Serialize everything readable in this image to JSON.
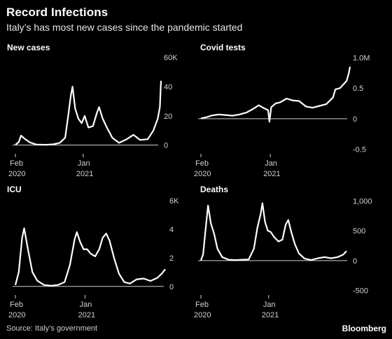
{
  "title": "Record Infections",
  "subtitle": "Italy’s has most new cases since the pandemic started",
  "source": "Source: Italy’s government",
  "brand": "Bloomberg",
  "chart_data": [
    {
      "id": "new-cases",
      "type": "line",
      "title": "New cases",
      "y_ticks": [
        "60K",
        "40",
        "20",
        "0"
      ],
      "y_tick_values": [
        60000,
        40000,
        20000,
        0
      ],
      "ylim": [
        -5000,
        62000
      ],
      "x_ticks": [
        {
          "top": "Feb",
          "bottom": "2020",
          "date": "2020-02-24"
        },
        {
          "top": "Jan",
          "bottom": "2021",
          "date": "2021-01-01"
        }
      ],
      "series": [
        {
          "points": [
            [
              "2020-02-24",
              200
            ],
            [
              "2020-03-10",
              2000
            ],
            [
              "2020-03-21",
              6500
            ],
            [
              "2020-04-05",
              4500
            ],
            [
              "2020-05-01",
              1800
            ],
            [
              "2020-06-01",
              300
            ],
            [
              "2020-07-15",
              200
            ],
            [
              "2020-08-15",
              500
            ],
            [
              "2020-09-15",
              1500
            ],
            [
              "2020-10-10",
              5000
            ],
            [
              "2020-10-25",
              21000
            ],
            [
              "2020-11-05",
              34000
            ],
            [
              "2020-11-13",
              40000
            ],
            [
              "2020-11-25",
              25000
            ],
            [
              "2020-12-10",
              18000
            ],
            [
              "2020-12-25",
              15000
            ],
            [
              "2021-01-08",
              20000
            ],
            [
              "2021-01-25",
              12000
            ],
            [
              "2021-02-15",
              13000
            ],
            [
              "2021-03-05",
              22000
            ],
            [
              "2021-03-15",
              26000
            ],
            [
              "2021-04-01",
              18000
            ],
            [
              "2021-04-20",
              12000
            ],
            [
              "2021-05-15",
              5000
            ],
            [
              "2021-06-15",
              1500
            ],
            [
              "2021-07-20",
              4000
            ],
            [
              "2021-08-20",
              7000
            ],
            [
              "2021-09-20",
              3500
            ],
            [
              "2021-10-25",
              4000
            ],
            [
              "2021-11-20",
              10000
            ],
            [
              "2021-12-10",
              18000
            ],
            [
              "2021-12-20",
              26000
            ],
            [
              "2021-12-25",
              44000
            ]
          ]
        }
      ]
    },
    {
      "id": "covid-tests",
      "type": "line",
      "title": "Covid tests",
      "y_ticks": [
        "1.0M",
        "0.5",
        "0",
        "-0.5"
      ],
      "y_tick_values": [
        1000000,
        500000,
        0,
        -500000
      ],
      "ylim": [
        -550000,
        1050000
      ],
      "x_ticks": [
        {
          "top": "Feb",
          "bottom": "2020",
          "date": "2020-02-24"
        },
        {
          "top": "Jan",
          "bottom": "2021",
          "date": "2021-01-01"
        }
      ],
      "series": [
        {
          "points": [
            [
              "2020-02-24",
              5000
            ],
            [
              "2020-03-20",
              25000
            ],
            [
              "2020-04-15",
              55000
            ],
            [
              "2020-05-15",
              70000
            ],
            [
              "2020-06-15",
              60000
            ],
            [
              "2020-07-15",
              50000
            ],
            [
              "2020-08-15",
              70000
            ],
            [
              "2020-09-15",
              100000
            ],
            [
              "2020-10-15",
              160000
            ],
            [
              "2020-11-10",
              220000
            ],
            [
              "2020-11-25",
              190000
            ],
            [
              "2020-12-10",
              160000
            ],
            [
              "2020-12-22",
              140000
            ],
            [
              "2020-12-28",
              -50000
            ],
            [
              "2021-01-05",
              190000
            ],
            [
              "2021-01-25",
              250000
            ],
            [
              "2021-02-15",
              270000
            ],
            [
              "2021-03-15",
              330000
            ],
            [
              "2021-04-10",
              300000
            ],
            [
              "2021-05-10",
              290000
            ],
            [
              "2021-06-10",
              200000
            ],
            [
              "2021-07-10",
              180000
            ],
            [
              "2021-08-10",
              210000
            ],
            [
              "2021-09-10",
              240000
            ],
            [
              "2021-10-10",
              350000
            ],
            [
              "2021-10-20",
              480000
            ],
            [
              "2021-11-10",
              500000
            ],
            [
              "2021-11-25",
              560000
            ],
            [
              "2021-12-10",
              620000
            ],
            [
              "2021-12-20",
              750000
            ],
            [
              "2021-12-25",
              850000
            ]
          ]
        }
      ]
    },
    {
      "id": "icu",
      "type": "line",
      "title": "ICU",
      "y_ticks": [
        "6K",
        "4",
        "2",
        "0"
      ],
      "y_tick_values": [
        6000,
        4000,
        2000,
        0
      ],
      "ylim": [
        -500,
        6200
      ],
      "x_ticks": [
        {
          "top": "Feb",
          "bottom": "2020",
          "date": "2020-02-24"
        },
        {
          "top": "Jan",
          "bottom": "2021",
          "date": "2021-01-01"
        }
      ],
      "series": [
        {
          "points": [
            [
              "2020-02-24",
              100
            ],
            [
              "2020-03-10",
              1000
            ],
            [
              "2020-03-25",
              3400
            ],
            [
              "2020-04-03",
              4068
            ],
            [
              "2020-04-20",
              2600
            ],
            [
              "2020-05-10",
              1000
            ],
            [
              "2020-06-01",
              400
            ],
            [
              "2020-07-01",
              100
            ],
            [
              "2020-08-01",
              50
            ],
            [
              "2020-09-01",
              100
            ],
            [
              "2020-10-01",
              300
            ],
            [
              "2020-10-25",
              1500
            ],
            [
              "2020-11-15",
              3300
            ],
            [
              "2020-11-25",
              3800
            ],
            [
              "2020-12-10",
              3100
            ],
            [
              "2020-12-25",
              2600
            ],
            [
              "2021-01-10",
              2600
            ],
            [
              "2021-01-25",
              2300
            ],
            [
              "2021-02-15",
              2100
            ],
            [
              "2021-03-05",
              2600
            ],
            [
              "2021-03-20",
              3400
            ],
            [
              "2021-04-05",
              3700
            ],
            [
              "2021-04-20",
              3200
            ],
            [
              "2021-05-10",
              2000
            ],
            [
              "2021-06-01",
              900
            ],
            [
              "2021-06-25",
              300
            ],
            [
              "2021-07-20",
              200
            ],
            [
              "2021-08-20",
              500
            ],
            [
              "2021-09-20",
              550
            ],
            [
              "2021-10-20",
              380
            ],
            [
              "2021-11-20",
              600
            ],
            [
              "2021-12-10",
              900
            ],
            [
              "2021-12-25",
              1200
            ]
          ]
        }
      ]
    },
    {
      "id": "deaths",
      "type": "line",
      "title": "Deaths",
      "y_ticks": [
        "1,000",
        "500",
        "0",
        "-500"
      ],
      "y_tick_values": [
        1000,
        500,
        0,
        -500
      ],
      "ylim": [
        -550,
        1050
      ],
      "x_ticks": [
        {
          "top": "Feb",
          "bottom": "2020",
          "date": "2020-02-24"
        },
        {
          "top": "Jan",
          "bottom": "2021",
          "date": "2021-01-01"
        }
      ],
      "series": [
        {
          "points": [
            [
              "2020-02-24",
              5
            ],
            [
              "2020-03-05",
              100
            ],
            [
              "2020-03-20",
              650
            ],
            [
              "2020-03-28",
              920
            ],
            [
              "2020-04-10",
              620
            ],
            [
              "2020-04-25",
              450
            ],
            [
              "2020-05-10",
              200
            ],
            [
              "2020-06-01",
              60
            ],
            [
              "2020-07-01",
              15
            ],
            [
              "2020-08-01",
              10
            ],
            [
              "2020-09-01",
              15
            ],
            [
              "2020-10-01",
              20
            ],
            [
              "2020-10-25",
              200
            ],
            [
              "2020-11-10",
              550
            ],
            [
              "2020-11-25",
              780
            ],
            [
              "2020-12-03",
              960
            ],
            [
              "2020-12-15",
              650
            ],
            [
              "2020-12-28",
              500
            ],
            [
              "2021-01-10",
              480
            ],
            [
              "2021-01-25",
              400
            ],
            [
              "2021-02-15",
              320
            ],
            [
              "2021-03-05",
              350
            ],
            [
              "2021-03-20",
              600
            ],
            [
              "2021-04-01",
              680
            ],
            [
              "2021-04-15",
              480
            ],
            [
              "2021-05-01",
              280
            ],
            [
              "2021-05-20",
              120
            ],
            [
              "2021-06-15",
              35
            ],
            [
              "2021-07-15",
              10
            ],
            [
              "2021-08-15",
              40
            ],
            [
              "2021-09-15",
              60
            ],
            [
              "2021-10-15",
              40
            ],
            [
              "2021-11-15",
              60
            ],
            [
              "2021-12-10",
              100
            ],
            [
              "2021-12-25",
              160
            ]
          ]
        }
      ]
    }
  ]
}
